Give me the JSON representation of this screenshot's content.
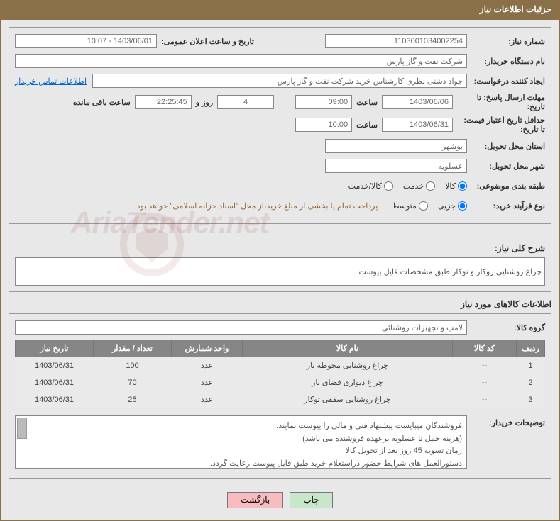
{
  "header": {
    "title": "جزئیات اطلاعات نیاز"
  },
  "fields": {
    "need_no_label": "شماره نیاز:",
    "need_no": "1103001034002254",
    "pub_date_label": "تاریخ و ساعت اعلان عمومی:",
    "pub_date": "1403/06/01 - 10:07",
    "buyer_label": "نام دستگاه خریدار:",
    "buyer": "شرکت نفت و گاز پارس",
    "creator_label": "ایجاد کننده درخواست:",
    "creator": "جواد دشتی نظری کارشناس خرید  شرکت نفت و گاز پارس",
    "contact_link": "اطلاعات تماس خریدار",
    "deadline_label": "مهلت ارسال پاسخ: تا تاریخ:",
    "deadline_date": "1403/06/06",
    "time_lbl1": "ساعت",
    "deadline_time": "09:00",
    "days_val": "4",
    "days_lbl": "روز و",
    "countdown": "22:25:45",
    "remain_lbl": "ساعت باقی مانده",
    "validity_label": "حداقل تاریخ اعتبار قیمت: تا تاریخ:",
    "validity_date": "1403/06/31",
    "validity_time": "10:00",
    "province_label": "استان محل تحویل:",
    "province": "بوشهر",
    "city_label": "شهر محل تحویل:",
    "city": "عسلویه",
    "category_label": "طبقه بندی موضوعی:",
    "cat_kala": "کالا",
    "cat_khadamat": "خدمت",
    "cat_both": "کالا/خدمت",
    "process_label": "نوع فرآیند خرید:",
    "proc_minor": "جزیی",
    "proc_mid": "متوسط",
    "note": "پرداخت تمام یا بخشی از مبلغ خرید،از محل \"اسناد خزانه اسلامی\" خواهد بود."
  },
  "desc": {
    "label": "شرح کلی نیاز:",
    "value": "چراغ روشنایی روکار و توکار طبق مشخصات فایل پیوست"
  },
  "items_title": "اطلاعات کالاهای مورد نیاز",
  "group": {
    "label": "گروه کالا:",
    "value": "لامپ و تجهیزات روشنائی"
  },
  "table": {
    "headers": {
      "idx": "ردیف",
      "code": "کد کالا",
      "name": "نام کالا",
      "unit": "واحد شمارش",
      "qty": "تعداد / مقدار",
      "date": "تاریخ نیاز"
    },
    "rows": [
      {
        "idx": "1",
        "code": "--",
        "name": "چراغ روشنایی محوطه باز",
        "unit": "عدد",
        "qty": "100",
        "date": "1403/06/31"
      },
      {
        "idx": "2",
        "code": "--",
        "name": "چراغ دیواری فضای باز",
        "unit": "عدد",
        "qty": "70",
        "date": "1403/06/31"
      },
      {
        "idx": "3",
        "code": "--",
        "name": "چراغ روشنایی سقفی توکار",
        "unit": "عدد",
        "qty": "25",
        "date": "1403/06/31"
      }
    ]
  },
  "buyer_notes": {
    "label": "توضیحات خریدار:",
    "l1": "فروشندگان میبایست پیشنهاد فنی و مالی را پیوست نمایند.",
    "l2": "(هزینه حمل تا عسلویه برعهده فروشنده می باشد)",
    "l3": "زمان تسویه 45 روز بعد از تحویل کالا",
    "l4": "دستورالعمل های شرایط حضور دراستعلام خرید طبق فایل پیوست رعایت گردد."
  },
  "buttons": {
    "print": "چاپ",
    "back": "بازگشت"
  },
  "watermark": "AriaTender.net"
}
